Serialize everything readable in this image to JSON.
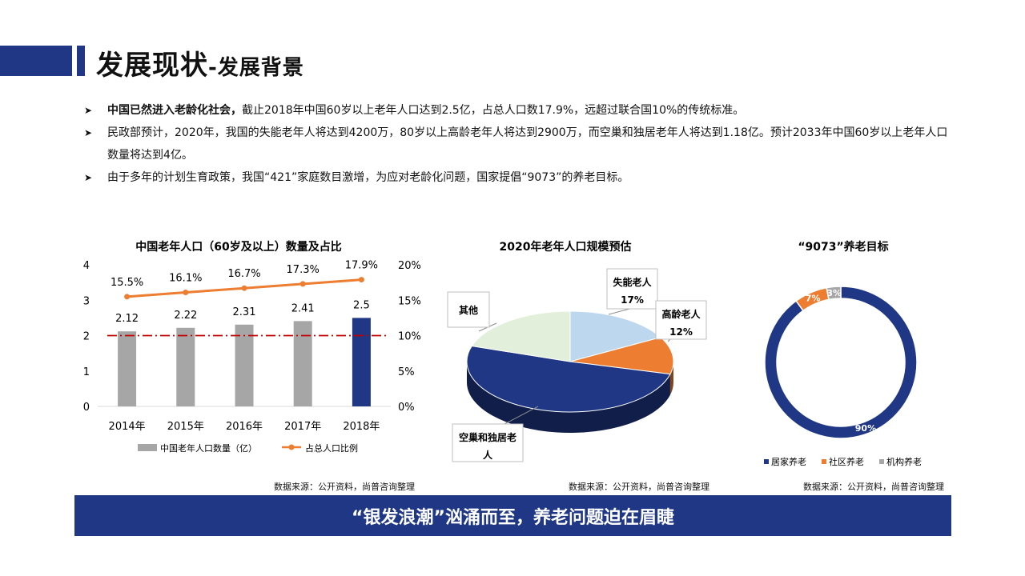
{
  "header": {
    "title_main": "发展现状",
    "title_sub": "-发展背景"
  },
  "bullets": [
    {
      "bold": "中国已然进入老龄化社会，",
      "text": "截止2018年中国60岁以上老年人口达到2.5亿，占总人口数17.9%，远超过联合国10%的传统标准。"
    },
    {
      "bold": "",
      "text": "民政部预计，2020年，我国的失能老年人将达到4200万，80岁以上高龄老年人将达到2900万，而空巢和独居老年人将达到1.18亿。预计2033年中国60岁以上老年人口数量将达到4亿。"
    },
    {
      "bold": "",
      "text": "由于多年的计划生育政策，我国“421”家庭数目激增，为应对老龄化问题，国家提倡“9073”的养老目标。"
    }
  ],
  "chart_data": [
    {
      "type": "bar",
      "title": "中国老年人口（60岁及以上）数量及占比",
      "categories": [
        "2014年",
        "2015年",
        "2016年",
        "2017年",
        "2018年"
      ],
      "series": [
        {
          "name": "中国老年人口数量（亿）",
          "type": "bar",
          "values": [
            2.12,
            2.22,
            2.31,
            2.41,
            2.5
          ],
          "labels": [
            "2.12",
            "2.22",
            "2.31",
            "2.41",
            "2.5"
          ],
          "color": "#a6a6a6",
          "highlight_color": "#1f3784"
        },
        {
          "name": "占总人口比例",
          "type": "line",
          "axis": "right",
          "values": [
            15.5,
            16.1,
            16.7,
            17.3,
            17.9
          ],
          "labels": [
            "15.5%",
            "16.1%",
            "16.7%",
            "17.3%",
            "17.9%"
          ],
          "color": "#ed7d31"
        }
      ],
      "reference_line": {
        "value": 10,
        "axis": "right",
        "color": "#c00000"
      },
      "ylim": [
        0,
        4
      ],
      "yticks": [
        "0",
        "1",
        "2",
        "3",
        "4"
      ],
      "y2lim": [
        0,
        20
      ],
      "y2ticks": [
        "0%",
        "5%",
        "10%",
        "15%",
        "20%"
      ],
      "legend": "bottom",
      "source": "数据来源：公开资料，尚普咨询整理"
    },
    {
      "type": "pie",
      "style": "3d",
      "title": "2020年老年人口规模预估",
      "slices": [
        {
          "label": "失能老人",
          "value": 17,
          "value_label": "17%",
          "color": "#bdd7ee"
        },
        {
          "label": "高龄老人",
          "value": 12,
          "value_label": "12%",
          "color": "#ed7d31"
        },
        {
          "label": "空巢和独居老人",
          "value": 51,
          "value_label": "",
          "color": "#1f3784"
        },
        {
          "label": "其他",
          "value": 20,
          "value_label": "",
          "color": "#e2efda"
        }
      ],
      "source": "数据来源：公开资料，尚普咨询整理"
    },
    {
      "type": "pie",
      "style": "donut",
      "title": "“9073”养老目标",
      "slices": [
        {
          "label": "居家养老",
          "value": 90,
          "value_label": "90%",
          "color": "#1f3784"
        },
        {
          "label": "社区养老",
          "value": 7,
          "value_label": "7%",
          "color": "#ed7d31"
        },
        {
          "label": "机构养老",
          "value": 3,
          "value_label": "3%",
          "color": "#a6a6a6"
        }
      ],
      "legend": "bottom",
      "source": "数据来源：公开资料，尚普咨询整理"
    }
  ],
  "pie_callouts": {
    "line1_a": "失能老人",
    "line2_a": "17%",
    "line1_b": "高龄老人",
    "line2_b": "12%",
    "line1_c": "其他",
    "line1_d": "空巢和独居老",
    "line2_d": "人"
  },
  "banner": "“银发浪潮”汹涌而至，养老问题迫在眉睫"
}
